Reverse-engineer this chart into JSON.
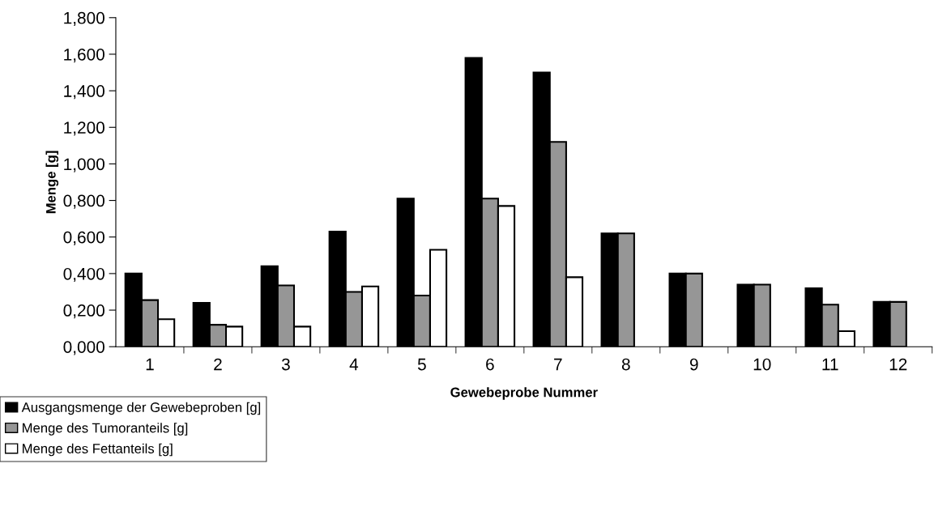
{
  "chart_data": {
    "type": "bar",
    "xlabel": "Gewebeprobe Nummer",
    "ylabel": "Menge [g]",
    "categories": [
      "1",
      "2",
      "3",
      "4",
      "5",
      "6",
      "7",
      "8",
      "9",
      "10",
      "11",
      "12"
    ],
    "series": [
      {
        "name": "Ausgangsmenge der Gewebeproben [g]",
        "color": "#000000",
        "values": [
          0.4,
          0.24,
          0.44,
          0.63,
          0.81,
          1.58,
          1.5,
          0.62,
          0.4,
          0.34,
          0.32,
          0.245
        ]
      },
      {
        "name": "Menge des Tumoranteils [g]",
        "color": "#969696",
        "values": [
          0.255,
          0.12,
          0.335,
          0.3,
          0.28,
          0.81,
          1.12,
          0.62,
          0.4,
          0.34,
          0.23,
          0.245
        ]
      },
      {
        "name": "Menge des Fettanteils [g]",
        "color": "#ffffff",
        "values": [
          0.15,
          0.11,
          0.11,
          0.33,
          0.53,
          0.77,
          0.38,
          null,
          null,
          null,
          0.085,
          null
        ]
      }
    ],
    "ylim": [
      0,
      1.8
    ],
    "yticks": [
      {
        "value": 0,
        "label": "0,000"
      },
      {
        "value": 0.2,
        "label": "0,200"
      },
      {
        "value": 0.4,
        "label": "0,400"
      },
      {
        "value": 0.6,
        "label": "0,600"
      },
      {
        "value": 0.8,
        "label": "0,800"
      },
      {
        "value": 1.0,
        "label": "1,000"
      },
      {
        "value": 1.2,
        "label": "1,200"
      },
      {
        "value": 1.4,
        "label": "1,400"
      },
      {
        "value": 1.6,
        "label": "1,600"
      },
      {
        "value": 1.8,
        "label": "1,800"
      }
    ],
    "grid": false,
    "legend": "bottom left"
  }
}
